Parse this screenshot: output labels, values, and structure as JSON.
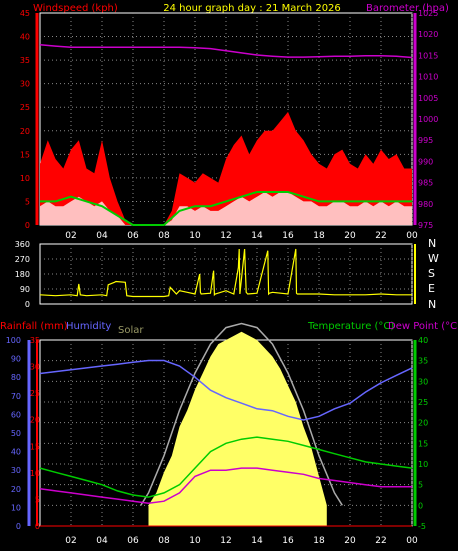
{
  "header": {
    "title": "24 hour graph day : 21 March 2026",
    "left_label": "Windspeed (kph)",
    "right_label": "Barometer (hpa)"
  },
  "direction_labels": [
    "N",
    "W",
    "S",
    "E",
    "N"
  ],
  "bottom_header": {
    "rainfall": "Rainfall (mm)",
    "humidity": "Humidity",
    "solar": "Solar",
    "temperature": "Temperature (°C)",
    "dewpoint": "Dew Point (°C)"
  },
  "colors": {
    "wind": "#ff0000",
    "gust_fill": "#ff0000",
    "avg_wind": "#00cc00",
    "wind_bars": "#ffffff",
    "barometer": "#cc00cc",
    "direction": "#ffff00",
    "humidity": "#6666ff",
    "temperature": "#00cc00",
    "dewpoint": "#cc00cc",
    "solar_line": "#aaaaaa",
    "solar_fill": "#ffff66",
    "rain_axis": "#ff0000",
    "humidity_axis": "#6666ff",
    "temp_axis": "#00cc00",
    "grid": "#888888"
  },
  "chart_data": [
    {
      "name": "wind_barometer",
      "type": "area",
      "x_ticks": [
        "02",
        "04",
        "06",
        "08",
        "10",
        "12",
        "14",
        "16",
        "18",
        "20",
        "22",
        "00"
      ],
      "x_range": [
        0,
        24
      ],
      "y_left_ticks": [
        "0",
        "5",
        "10",
        "15",
        "20",
        "25",
        "30",
        "35",
        "40",
        "45"
      ],
      "y_left_range": [
        0,
        45
      ],
      "y_right_ticks": [
        "975",
        "980",
        "985",
        "990",
        "995",
        "1000",
        "1005",
        "1010",
        "1015",
        "1020",
        "1025"
      ],
      "y_right_range": [
        975,
        1025
      ],
      "series": [
        {
          "key": "gust",
          "x": [
            0,
            0.5,
            1,
            1.5,
            2,
            2.5,
            3,
            3.5,
            4,
            4.5,
            5,
            5.5,
            6,
            6.5,
            7,
            7.5,
            8,
            8.5,
            9,
            9.5,
            10,
            10.5,
            11,
            11.5,
            12,
            12.5,
            13,
            13.5,
            14,
            14.5,
            15,
            15.5,
            16,
            16.5,
            17,
            17.5,
            18,
            18.5,
            19,
            19.5,
            20,
            20.5,
            21,
            21.5,
            22,
            22.5,
            23,
            23.5,
            24
          ],
          "values": [
            13,
            18,
            14,
            12,
            16,
            18,
            12,
            11,
            18,
            10,
            5,
            1,
            0,
            0,
            0,
            0,
            0,
            3,
            11,
            10,
            9,
            11,
            10,
            9,
            14,
            17,
            19,
            15,
            18,
            20,
            20,
            22,
            24,
            20,
            18,
            15,
            13,
            12,
            15,
            16,
            13,
            12,
            15,
            13,
            16,
            14,
            15,
            12,
            12
          ]
        },
        {
          "key": "wind",
          "x": [
            0,
            0.5,
            1,
            1.5,
            2,
            2.5,
            3,
            3.5,
            4,
            4.5,
            5,
            5.5,
            6,
            6.5,
            7,
            7.5,
            8,
            8.5,
            9,
            9.5,
            10,
            10.5,
            11,
            11.5,
            12,
            12.5,
            13,
            13.5,
            14,
            14.5,
            15,
            15.5,
            16,
            16.5,
            17,
            17.5,
            18,
            18.5,
            19,
            19.5,
            20,
            20.5,
            21,
            21.5,
            22,
            22.5,
            23,
            23.5,
            24
          ],
          "values": [
            4,
            5,
            4,
            4,
            5,
            6,
            5,
            4,
            5,
            3,
            2,
            0,
            0,
            0,
            0,
            0,
            0,
            1,
            4,
            4,
            3,
            4,
            3,
            3,
            4,
            5,
            6,
            5,
            6,
            7,
            6,
            7,
            7,
            6,
            5,
            5,
            4,
            4,
            5,
            5,
            4,
            4,
            5,
            4,
            5,
            4,
            5,
            4,
            4
          ]
        },
        {
          "key": "avg_wind",
          "x": [
            0,
            1,
            2,
            3,
            4,
            5,
            6,
            7,
            8,
            9,
            10,
            11,
            12,
            13,
            14,
            15,
            16,
            17,
            18,
            19,
            20,
            21,
            22,
            23,
            24
          ],
          "values": [
            5,
            5,
            6,
            5,
            4,
            2,
            0,
            0,
            0,
            3,
            4,
            4,
            5,
            6,
            7,
            7,
            7,
            6,
            5,
            5,
            5,
            5,
            5,
            5,
            5
          ]
        },
        {
          "key": "barometer",
          "x": [
            0,
            1,
            2,
            3,
            4,
            5,
            6,
            7,
            8,
            9,
            10,
            11,
            12,
            13,
            14,
            15,
            16,
            17,
            18,
            19,
            20,
            21,
            22,
            23,
            24
          ],
          "values": [
            1017.5,
            1017.2,
            1016.9,
            1016.9,
            1016.9,
            1016.9,
            1016.9,
            1016.9,
            1016.9,
            1016.9,
            1016.8,
            1016.6,
            1016.1,
            1015.6,
            1015.1,
            1014.8,
            1014.6,
            1014.6,
            1014.7,
            1014.8,
            1014.8,
            1014.9,
            1014.9,
            1014.8,
            1014.5
          ]
        }
      ]
    },
    {
      "name": "wind_direction",
      "type": "line",
      "x_range": [
        0,
        24
      ],
      "y_ticks": [
        "0",
        "90",
        "180",
        "270",
        "360"
      ],
      "y_range": [
        0,
        360
      ],
      "series": [
        {
          "key": "direction",
          "x": [
            0,
            1,
            2,
            2.4,
            2.5,
            2.6,
            3,
            4,
            4.3,
            4.4,
            4.8,
            4.9,
            5.5,
            5.6,
            6,
            7,
            8,
            8.3,
            8.4,
            8.8,
            9,
            9.5,
            10,
            10.3,
            10.35,
            10.4,
            11,
            11.2,
            11.25,
            11.3,
            12,
            12.5,
            12.8,
            12.85,
            12.9,
            13.2,
            13.3,
            13.4,
            14,
            14.7,
            14.75,
            14.8,
            15,
            16,
            16.5,
            16.55,
            16.6,
            17,
            18,
            19,
            20,
            21,
            22,
            23,
            24
          ],
          "values": [
            55,
            50,
            55,
            50,
            120,
            55,
            50,
            55,
            50,
            115,
            130,
            135,
            130,
            50,
            45,
            45,
            45,
            50,
            100,
            60,
            80,
            70,
            60,
            180,
            70,
            60,
            65,
            200,
            55,
            60,
            80,
            60,
            220,
            330,
            60,
            330,
            70,
            60,
            65,
            320,
            60,
            65,
            70,
            60,
            330,
            65,
            60,
            60,
            60,
            55,
            55,
            55,
            60,
            55,
            55
          ]
        }
      ]
    },
    {
      "name": "temperature_humidity",
      "type": "line",
      "x_range": [
        0,
        24
      ],
      "y_rain_ticks": [
        "0",
        "5",
        "10",
        "15",
        "20",
        "25",
        "30",
        "35"
      ],
      "y_rain_range": [
        0,
        35
      ],
      "y_humidity_ticks": [
        "0",
        "10",
        "20",
        "30",
        "40",
        "50",
        "60",
        "70",
        "80",
        "90",
        "100"
      ],
      "y_humidity_range": [
        0,
        100
      ],
      "y_temp_ticks": [
        "-5",
        "0",
        "5",
        "10",
        "15",
        "20",
        "25",
        "30",
        "35",
        "40"
      ],
      "y_temp_range": [
        -5,
        40
      ],
      "series": [
        {
          "key": "humidity",
          "x": [
            0,
            1,
            2,
            3,
            4,
            5,
            6,
            7,
            8,
            9,
            10,
            11,
            12,
            13,
            14,
            15,
            16,
            17,
            18,
            19,
            20,
            21,
            22,
            23,
            24
          ],
          "values": [
            82,
            83,
            84,
            85,
            86,
            87,
            88,
            89,
            89,
            86,
            80,
            73,
            69,
            66,
            63,
            62,
            59,
            57,
            59,
            63,
            66,
            72,
            77,
            81,
            85
          ]
        },
        {
          "key": "temperature",
          "x": [
            0,
            1,
            2,
            3,
            4,
            5,
            6,
            7,
            8,
            9,
            10,
            11,
            12,
            13,
            14,
            15,
            16,
            17,
            18,
            19,
            20,
            21,
            22,
            23,
            24
          ],
          "values": [
            9,
            8,
            7,
            6,
            5,
            3.5,
            2.5,
            2,
            3,
            5,
            9,
            13,
            15,
            16,
            16.5,
            16,
            15.5,
            14.5,
            13.5,
            12.5,
            11.5,
            10.5,
            10,
            9.5,
            9
          ]
        },
        {
          "key": "dewpoint",
          "x": [
            0,
            1,
            2,
            3,
            4,
            5,
            6,
            7,
            8,
            9,
            10,
            11,
            12,
            13,
            14,
            15,
            16,
            17,
            18,
            19,
            20,
            21,
            22,
            23,
            24
          ],
          "values": [
            4,
            3.5,
            3,
            2.5,
            2,
            1.5,
            1,
            0.5,
            1,
            3,
            7,
            8.5,
            8.5,
            9,
            9,
            8.5,
            8,
            7.5,
            6.5,
            6,
            5.5,
            5,
            4.5,
            4.5,
            4.5
          ]
        },
        {
          "key": "solar_theoretical",
          "x": [
            6.5,
            7,
            8,
            9,
            10,
            11,
            12,
            13,
            14,
            15,
            16,
            17,
            18,
            19,
            19.5
          ],
          "values": [
            0,
            3,
            12,
            23,
            32,
            39,
            43,
            44,
            43,
            39,
            32,
            23,
            12,
            3,
            0
          ]
        },
        {
          "key": "solar_actual",
          "x": [
            7,
            7.5,
            8,
            8.5,
            9,
            9.5,
            10,
            10.5,
            11,
            11.5,
            12,
            12.5,
            13,
            13.5,
            14,
            14.5,
            15,
            15.5,
            16,
            16.5,
            17,
            17.5,
            18,
            18.5
          ],
          "values": [
            0,
            3,
            8,
            12,
            19,
            23,
            28,
            32,
            36,
            39,
            40,
            41,
            42,
            41,
            40,
            38,
            36,
            33,
            29,
            25,
            19,
            14,
            7,
            0
          ]
        },
        {
          "key": "rain",
          "x": [
            0,
            24
          ],
          "values": [
            0,
            0
          ]
        }
      ]
    }
  ]
}
